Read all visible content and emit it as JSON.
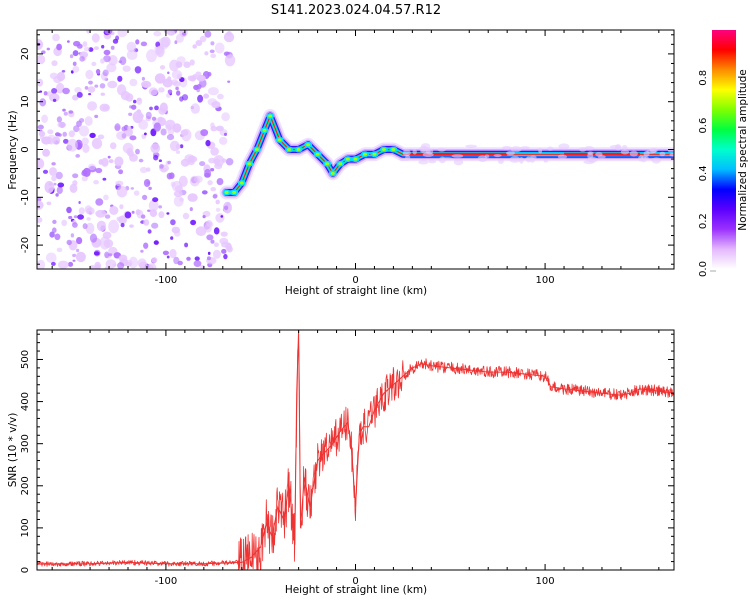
{
  "title": "S141.2023.024.04.57.R12",
  "chart_data": [
    {
      "type": "heatmap",
      "xlabel": "Height of straight line (km)",
      "ylabel": "Frequency (Hz)",
      "xlim": [
        -168,
        168
      ],
      "ylim": [
        -25,
        25
      ],
      "xticks": [
        -100,
        0,
        100
      ],
      "yticks": [
        -20,
        -10,
        0,
        10,
        20
      ],
      "grid": false,
      "noise_region_x": [
        -168,
        -70
      ],
      "ridge": {
        "x": [
          -68,
          -64,
          -60,
          -56,
          -52,
          -48,
          -45,
          -40,
          -35,
          -30,
          -25,
          -20,
          -15,
          -12,
          -8,
          -4,
          0,
          5,
          10,
          15,
          20,
          25,
          168
        ],
        "y": [
          -9,
          -9,
          -7,
          -3,
          0,
          4,
          7,
          2,
          0,
          0,
          1,
          -1,
          -3,
          -5,
          -3,
          -2,
          -2,
          -1,
          -1,
          0,
          0,
          -1,
          -1
        ]
      }
    },
    {
      "type": "colorbar",
      "label": "Normalized spectral amplitude",
      "range": [
        0,
        1
      ],
      "ticks": [
        0.0,
        0.2,
        0.4,
        0.6,
        0.8
      ],
      "colors": [
        "#ffffff",
        "#e4b8ff",
        "#9b30ff",
        "#5a00ff",
        "#0000ff",
        "#00bfff",
        "#00ffcc",
        "#00ff40",
        "#80ff00",
        "#ffff00",
        "#ff8c00",
        "#ff0000",
        "#ff007f"
      ]
    },
    {
      "type": "line",
      "xlabel": "Height of straight line (km)",
      "ylabel": "SNR (10 * v/v)",
      "xlim": [
        -168,
        168
      ],
      "ylim": [
        0,
        570
      ],
      "xticks": [
        -100,
        0,
        100
      ],
      "yticks": [
        0,
        100,
        200,
        300,
        400,
        500
      ],
      "grid": false,
      "series": [
        {
          "color": "#ee3333",
          "x": [
            -168,
            -140,
            -120,
            -100,
            -80,
            -60,
            -55,
            -50,
            -47,
            -44,
            -41,
            -38,
            -35,
            -32,
            -31,
            -30,
            -29,
            -27,
            -24,
            -20,
            -16,
            -12,
            -8,
            -4,
            -2,
            0,
            2,
            4,
            7,
            10,
            15,
            20,
            25,
            30,
            35,
            40,
            50,
            60,
            70,
            80,
            90,
            100,
            103,
            110,
            120,
            130,
            140,
            145,
            150,
            160,
            168
          ],
          "y": [
            14,
            15,
            18,
            15,
            15,
            18,
            30,
            55,
            110,
            80,
            150,
            120,
            200,
            60,
            420,
            570,
            100,
            220,
            150,
            260,
            280,
            300,
            330,
            350,
            280,
            150,
            320,
            340,
            340,
            380,
            420,
            440,
            460,
            480,
            490,
            485,
            480,
            475,
            470,
            470,
            465,
            460,
            435,
            430,
            425,
            420,
            415,
            420,
            430,
            425,
            420
          ]
        }
      ]
    }
  ]
}
